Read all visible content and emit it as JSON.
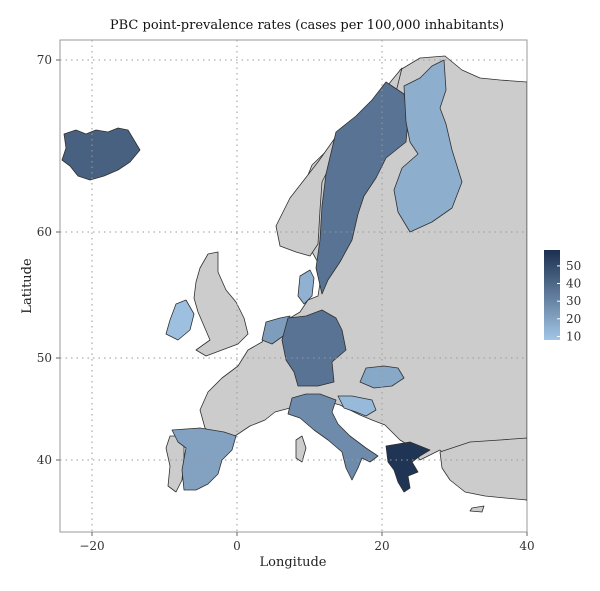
{
  "chart_data": {
    "type": "choropleth",
    "title": "PBC point-prevalence rates (cases per 100,000 inhabitants)",
    "xlabel": "Longitude",
    "ylabel": "Latitude",
    "xlim": [
      -25,
      40
    ],
    "ylim": [
      34,
      72
    ],
    "x_ticks": [
      -20,
      0,
      20,
      40
    ],
    "y_ticks": [
      40,
      50,
      60,
      70
    ],
    "grid": true,
    "legend_position": "right",
    "colorbar": {
      "min": 8,
      "max": 59,
      "ticks": [
        10,
        20,
        30,
        40,
        50
      ],
      "low_color": "#a3c6e6",
      "high_color": "#1b2f4f"
    },
    "no_data_color": "#cccccc",
    "regions_with_data": [
      {
        "name": "Iceland",
        "value": 42
      },
      {
        "name": "Sweden",
        "value": 36
      },
      {
        "name": "Finland",
        "value": 16
      },
      {
        "name": "Denmark",
        "value": 15
      },
      {
        "name": "Ireland",
        "value": 10
      },
      {
        "name": "Netherlands",
        "value": 22
      },
      {
        "name": "Germany",
        "value": 36
      },
      {
        "name": "Italy",
        "value": 28
      },
      {
        "name": "Spain",
        "value": 20
      },
      {
        "name": "Hungary",
        "value": 18
      },
      {
        "name": "Croatia",
        "value": 12
      },
      {
        "name": "Greece",
        "value": 57
      }
    ]
  }
}
